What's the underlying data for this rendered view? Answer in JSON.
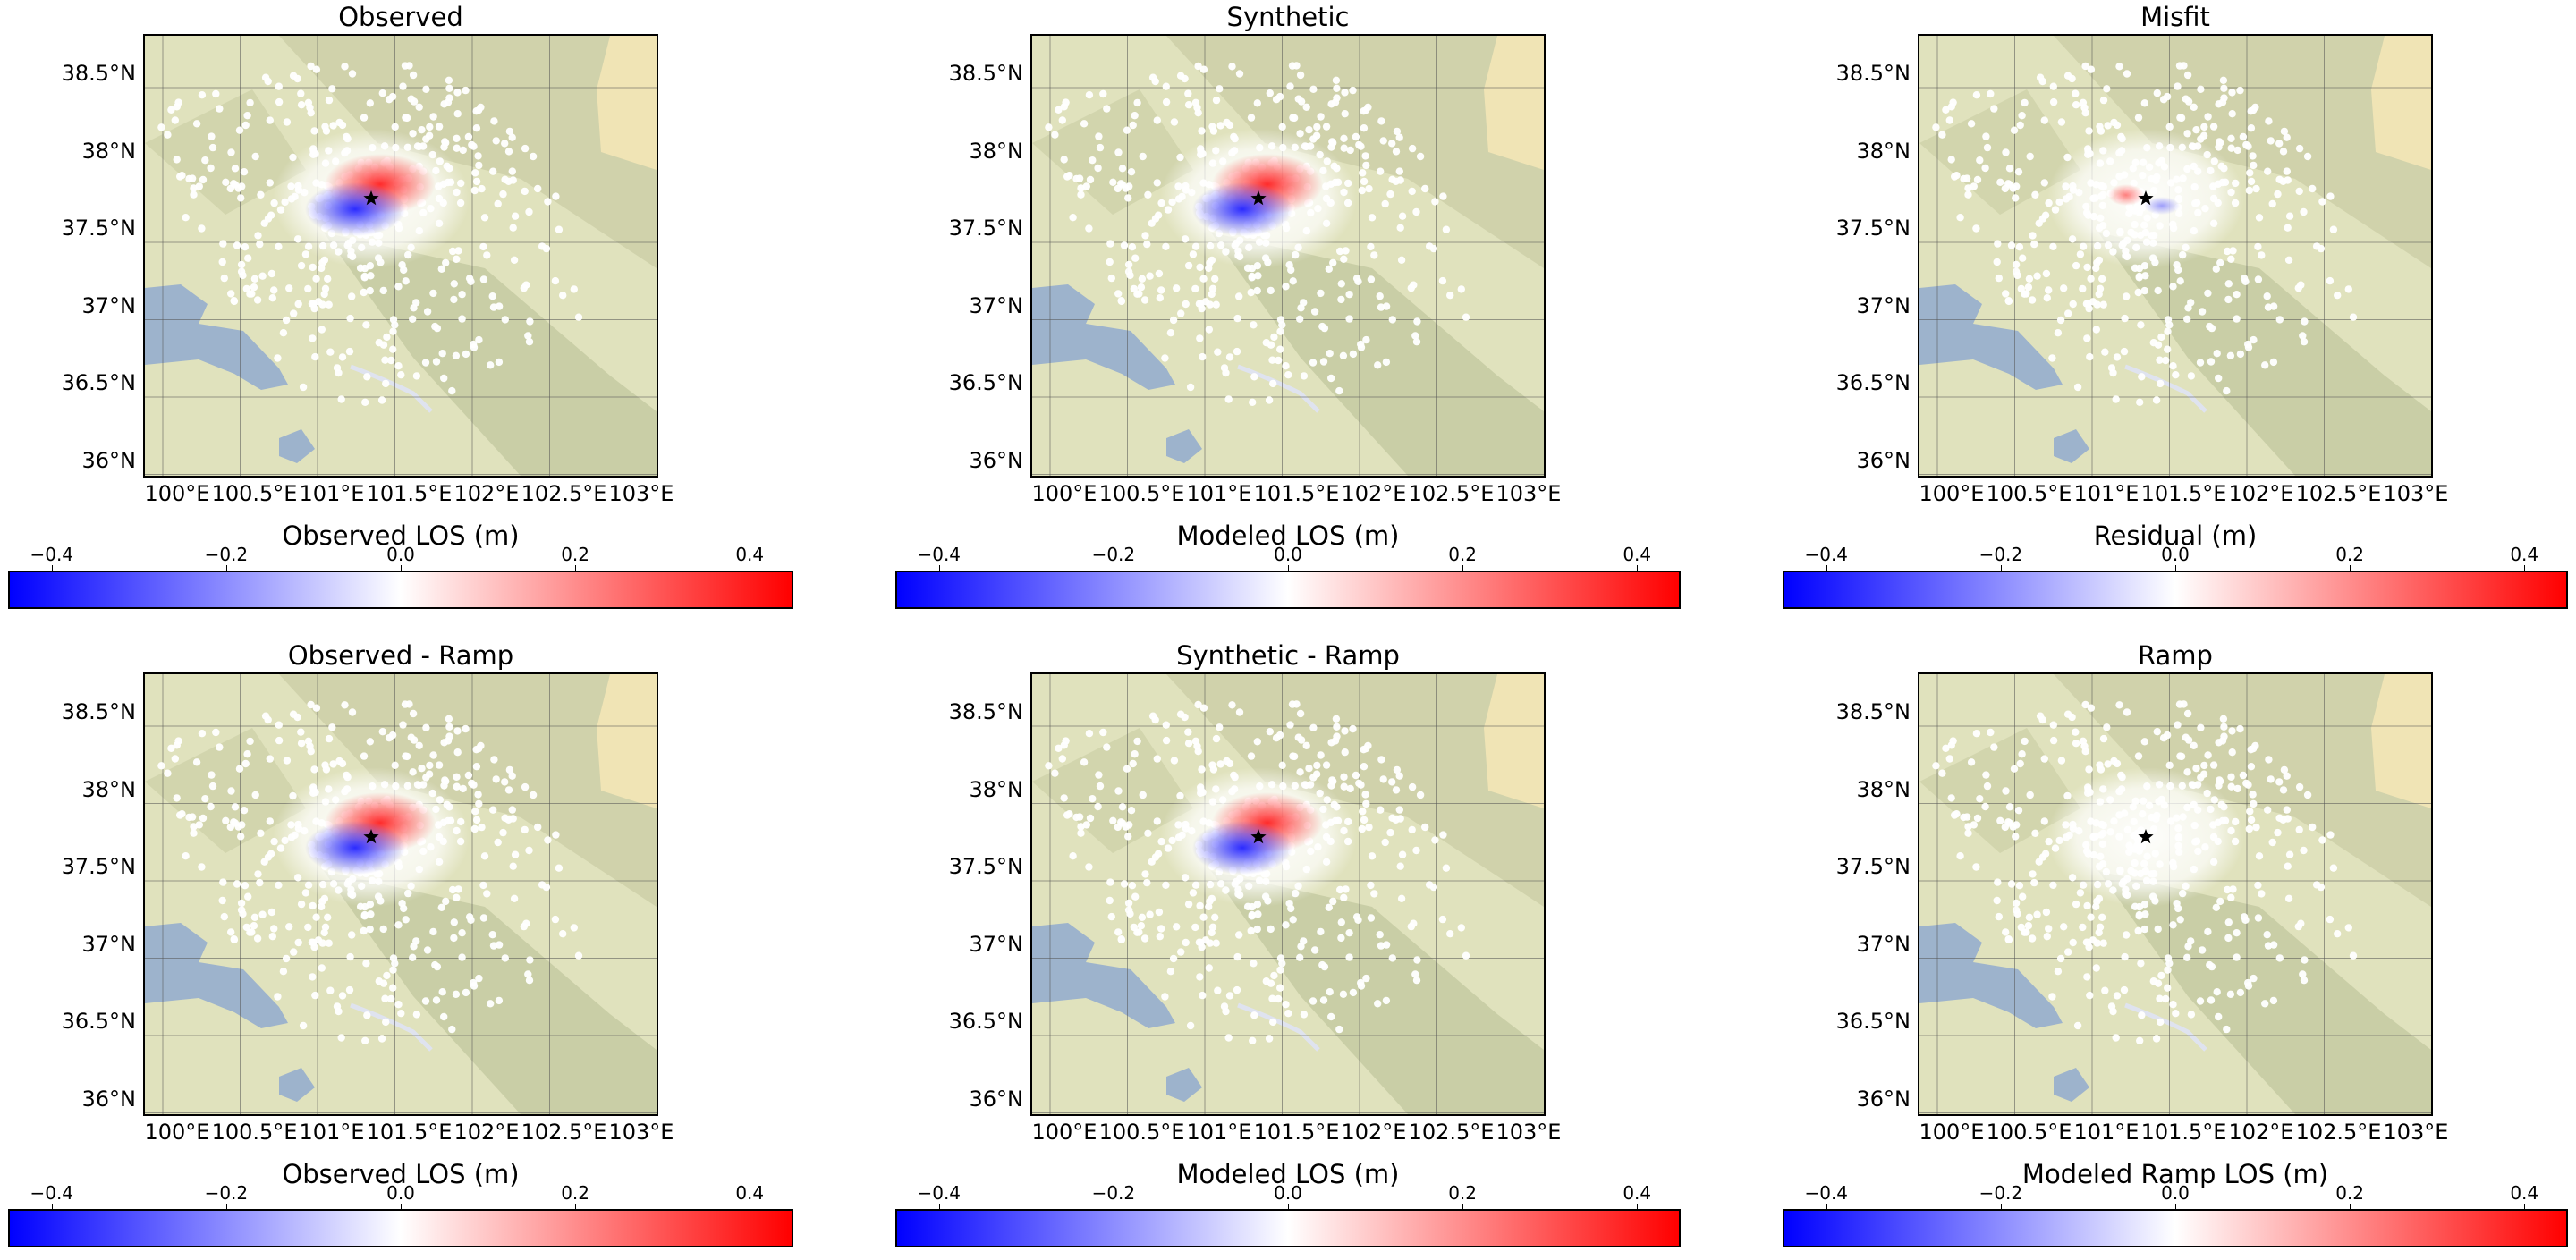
{
  "chart_data": [
    {
      "type": "heatmap",
      "title": "Observed",
      "colorbar_label": "Observed LOS (m)",
      "pattern": "dipole"
    },
    {
      "type": "heatmap",
      "title": "Synthetic",
      "colorbar_label": "Modeled LOS (m)",
      "pattern": "dipole"
    },
    {
      "type": "heatmap",
      "title": "Misfit",
      "colorbar_label": "Residual (m)",
      "pattern": "residual"
    },
    {
      "type": "heatmap",
      "title": "Observed - Ramp",
      "colorbar_label": "Observed LOS (m)",
      "pattern": "dipole"
    },
    {
      "type": "heatmap",
      "title": "Synthetic - Ramp",
      "colorbar_label": "Modeled LOS (m)",
      "pattern": "dipole"
    },
    {
      "type": "heatmap",
      "title": "Ramp",
      "colorbar_label": "Modeled Ramp LOS (m)",
      "pattern": "flat"
    }
  ],
  "axes": {
    "yticks": [
      "38.5°N",
      "38°N",
      "37.5°N",
      "37°N",
      "36.5°N",
      "36°N"
    ],
    "xticks": [
      "100°E",
      "100.5°E",
      "101°E",
      "101.5°E",
      "102°E",
      "102.5°E",
      "103°E"
    ],
    "colorbar_ticks": [
      "−0.4",
      "−0.2",
      "0.0",
      "0.2",
      "0.4"
    ],
    "colorbar_range": [
      -0.45,
      0.45
    ],
    "colormap": [
      "#0000ff",
      "#ffffff",
      "#ff0000"
    ]
  }
}
